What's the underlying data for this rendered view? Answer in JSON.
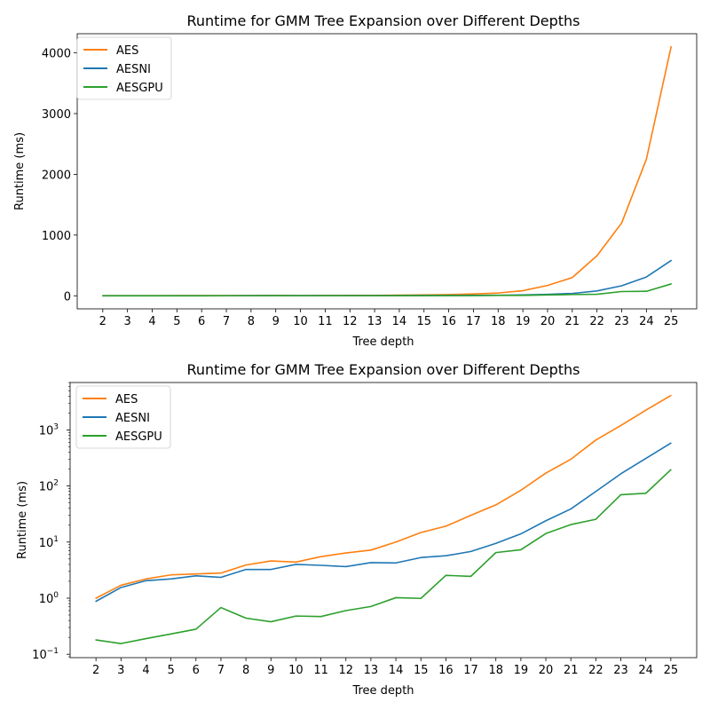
{
  "chart_data": [
    {
      "type": "line",
      "title": "Runtime for GMM Tree Expansion over Different Depths",
      "xlabel": "Tree depth",
      "ylabel": "Runtime (ms)",
      "yscale": "linear",
      "ylim": [
        -215,
        4315
      ],
      "yticks": [
        0,
        1000,
        2000,
        3000,
        4000
      ],
      "grid": false,
      "legend_position": "top-left",
      "x": [
        2,
        3,
        4,
        5,
        6,
        7,
        8,
        9,
        10,
        11,
        12,
        13,
        14,
        15,
        16,
        17,
        18,
        19,
        20,
        21,
        22,
        23,
        24,
        25
      ],
      "series": [
        {
          "name": "AES",
          "color": "#ff7f0e",
          "values": [
            1.0,
            1.7,
            2.2,
            2.6,
            2.7,
            2.8,
            3.9,
            4.6,
            4.4,
            5.5,
            6.4,
            7.2,
            10.0,
            14.8,
            19.2,
            30.0,
            46.0,
            84.0,
            170.0,
            300.0,
            660.0,
            1200.0,
            2250.0,
            4100.0
          ]
        },
        {
          "name": "AESNI",
          "color": "#1f77b4",
          "values": [
            0.88,
            1.55,
            2.05,
            2.2,
            2.5,
            2.35,
            3.25,
            3.25,
            4.0,
            3.85,
            3.65,
            4.3,
            4.25,
            5.3,
            5.7,
            6.8,
            9.5,
            14.0,
            24.0,
            39.0,
            80.0,
            165.0,
            310.0,
            580.0
          ]
        },
        {
          "name": "AESGPU",
          "color": "#2ca02c",
          "values": [
            0.18,
            0.155,
            0.19,
            0.23,
            0.28,
            0.68,
            0.44,
            0.38,
            0.48,
            0.47,
            0.6,
            0.71,
            1.02,
            0.99,
            2.55,
            2.45,
            6.5,
            7.3,
            14.2,
            20.5,
            25.5,
            70.0,
            74.0,
            195.0
          ]
        }
      ]
    },
    {
      "type": "line",
      "title": "Runtime for GMM Tree Expansion over Different Depths",
      "xlabel": "Tree depth",
      "ylabel": "Runtime (ms)",
      "yscale": "log",
      "ylim": [
        0.087,
        7000
      ],
      "yticks": [
        0.1,
        1,
        10,
        100,
        1000
      ],
      "grid": false,
      "legend_position": "top-left",
      "x": [
        2,
        3,
        4,
        5,
        6,
        7,
        8,
        9,
        10,
        11,
        12,
        13,
        14,
        15,
        16,
        17,
        18,
        19,
        20,
        21,
        22,
        23,
        24,
        25
      ],
      "series": [
        {
          "name": "AES",
          "color": "#ff7f0e",
          "values": [
            1.0,
            1.7,
            2.2,
            2.6,
            2.7,
            2.8,
            3.9,
            4.6,
            4.4,
            5.5,
            6.4,
            7.2,
            10.0,
            14.8,
            19.2,
            30.0,
            46.0,
            84.0,
            170.0,
            300.0,
            660.0,
            1200.0,
            2250.0,
            4100.0
          ]
        },
        {
          "name": "AESNI",
          "color": "#1f77b4",
          "values": [
            0.88,
            1.55,
            2.05,
            2.2,
            2.5,
            2.35,
            3.25,
            3.25,
            4.0,
            3.85,
            3.65,
            4.3,
            4.25,
            5.3,
            5.7,
            6.8,
            9.5,
            14.0,
            24.0,
            39.0,
            80.0,
            165.0,
            310.0,
            580.0
          ]
        },
        {
          "name": "AESGPU",
          "color": "#2ca02c",
          "values": [
            0.18,
            0.155,
            0.19,
            0.23,
            0.28,
            0.68,
            0.44,
            0.38,
            0.48,
            0.47,
            0.6,
            0.71,
            1.02,
            0.99,
            2.55,
            2.45,
            6.5,
            7.3,
            14.2,
            20.5,
            25.5,
            70.0,
            74.0,
            195.0
          ]
        }
      ]
    }
  ]
}
